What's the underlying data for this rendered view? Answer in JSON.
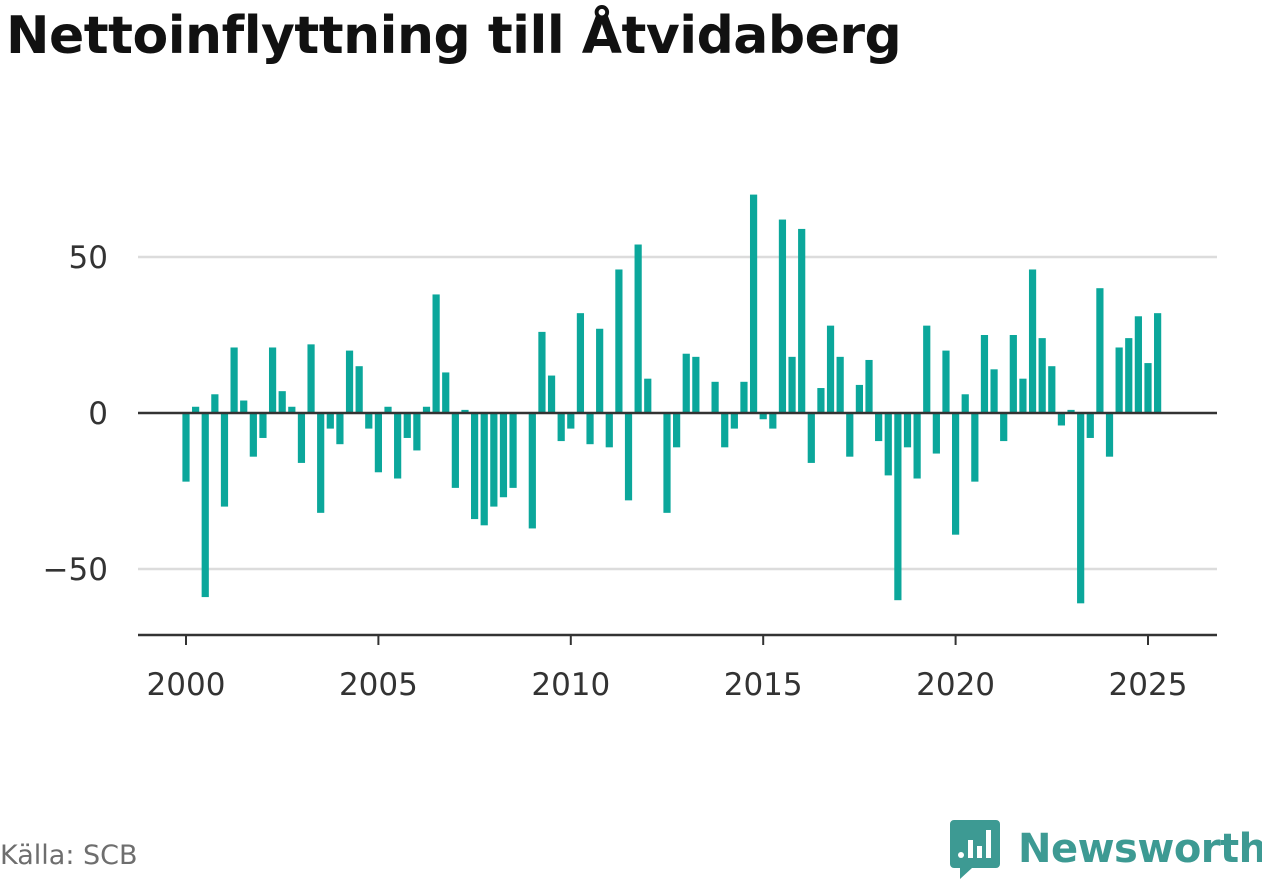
{
  "title": "Nettoinflyttning till Åtvidaberg",
  "source": "Källa: SCB",
  "brand": {
    "name": "Newsworthy",
    "logo_icon": "newsworthy-logo-icon"
  },
  "colors": {
    "bar": "#0ba79b",
    "grid": "#dcdcdc",
    "zero": "#333333",
    "axis": "#333333",
    "brand": "#3d9a93"
  },
  "chart_data": {
    "type": "bar",
    "title": "Nettoinflyttning till Åtvidaberg",
    "xlabel": "",
    "ylabel": "",
    "grid": true,
    "xlim": [
      1999.25,
      2026.5
    ],
    "ylim": [
      -70,
      80
    ],
    "yticks": [
      50,
      0,
      -50
    ],
    "ytick_labels": [
      "50",
      "0",
      "−50"
    ],
    "xticks": [
      2000,
      2005,
      2010,
      2015,
      2020,
      2025
    ],
    "xtick_labels": [
      "2000",
      "2005",
      "2010",
      "2015",
      "2020",
      "2025"
    ],
    "categories": [
      "2000 Q1",
      "2000 Q2",
      "2000 Q3",
      "2000 Q4",
      "2001 Q1",
      "2001 Q2",
      "2001 Q3",
      "2001 Q4",
      "2002 Q1",
      "2002 Q2",
      "2002 Q3",
      "2002 Q4",
      "2003 Q1",
      "2003 Q2",
      "2003 Q3",
      "2003 Q4",
      "2004 Q1",
      "2004 Q2",
      "2004 Q3",
      "2004 Q4",
      "2005 Q1",
      "2005 Q2",
      "2005 Q3",
      "2005 Q4",
      "2006 Q1",
      "2006 Q2",
      "2006 Q3",
      "2006 Q4",
      "2007 Q1",
      "2007 Q2",
      "2007 Q3",
      "2007 Q4",
      "2008 Q1",
      "2008 Q2",
      "2008 Q3",
      "2008 Q4",
      "2009 Q1",
      "2009 Q2",
      "2009 Q3",
      "2009 Q4",
      "2010 Q1",
      "2010 Q2",
      "2010 Q3",
      "2010 Q4",
      "2011 Q1",
      "2011 Q2",
      "2011 Q3",
      "2011 Q4",
      "2012 Q1",
      "2012 Q2",
      "2012 Q3",
      "2012 Q4",
      "2013 Q1",
      "2013 Q2",
      "2013 Q3",
      "2013 Q4",
      "2014 Q1",
      "2014 Q2",
      "2014 Q3",
      "2014 Q4",
      "2015 Q1",
      "2015 Q2",
      "2015 Q3",
      "2015 Q4",
      "2016 Q1",
      "2016 Q2",
      "2016 Q3",
      "2016 Q4",
      "2017 Q1",
      "2017 Q2",
      "2017 Q3",
      "2017 Q4",
      "2018 Q1",
      "2018 Q2",
      "2018 Q3",
      "2018 Q4",
      "2019 Q1",
      "2019 Q2",
      "2019 Q3",
      "2019 Q4",
      "2020 Q1",
      "2020 Q2",
      "2020 Q3",
      "2020 Q4",
      "2021 Q1",
      "2021 Q2",
      "2021 Q3",
      "2021 Q4",
      "2022 Q1",
      "2022 Q2",
      "2022 Q3",
      "2022 Q4",
      "2023 Q1",
      "2023 Q2",
      "2023 Q3",
      "2023 Q4",
      "2024 Q1",
      "2024 Q2",
      "2024 Q3",
      "2024 Q4",
      "2025 Q1",
      "2025 Q2"
    ],
    "x": [
      2000.0,
      2000.25,
      2000.5,
      2000.75,
      2001.0,
      2001.25,
      2001.5,
      2001.75,
      2002.0,
      2002.25,
      2002.5,
      2002.75,
      2003.0,
      2003.25,
      2003.5,
      2003.75,
      2004.0,
      2004.25,
      2004.5,
      2004.75,
      2005.0,
      2005.25,
      2005.5,
      2005.75,
      2006.0,
      2006.25,
      2006.5,
      2006.75,
      2007.0,
      2007.25,
      2007.5,
      2007.75,
      2008.0,
      2008.25,
      2008.5,
      2008.75,
      2009.0,
      2009.25,
      2009.5,
      2009.75,
      2010.0,
      2010.25,
      2010.5,
      2010.75,
      2011.0,
      2011.25,
      2011.5,
      2011.75,
      2012.0,
      2012.25,
      2012.5,
      2012.75,
      2013.0,
      2013.25,
      2013.5,
      2013.75,
      2014.0,
      2014.25,
      2014.5,
      2014.75,
      2015.0,
      2015.25,
      2015.5,
      2015.75,
      2016.0,
      2016.25,
      2016.5,
      2016.75,
      2017.0,
      2017.25,
      2017.5,
      2017.75,
      2018.0,
      2018.25,
      2018.5,
      2018.75,
      2019.0,
      2019.25,
      2019.5,
      2019.75,
      2020.0,
      2020.25,
      2020.5,
      2020.75,
      2021.0,
      2021.25,
      2021.5,
      2021.75,
      2022.0,
      2022.25,
      2022.5,
      2022.75,
      2023.0,
      2023.25,
      2023.5,
      2023.75,
      2024.0,
      2024.25,
      2024.5,
      2024.75,
      2025.0,
      2025.25
    ],
    "series": [
      {
        "values": [
          -22,
          2,
          -59,
          6,
          -30,
          21,
          4,
          -14,
          -8,
          21,
          7,
          2,
          -16,
          22,
          -32,
          -5,
          -10,
          20,
          15,
          -5,
          -19,
          2,
          -21,
          -8,
          -12,
          2,
          38,
          13,
          -24,
          1,
          -34,
          -36,
          -30,
          -27,
          -24,
          0,
          -37,
          26,
          12,
          -9,
          -5,
          32,
          -10,
          27,
          -11,
          46,
          -28,
          54,
          11,
          0,
          -32,
          -11,
          19,
          18,
          0,
          10,
          -11,
          -5,
          10,
          70,
          -2,
          -5,
          62,
          18,
          59,
          -16,
          8,
          28,
          18,
          -14,
          9,
          17,
          -9,
          -20,
          -60,
          -11,
          -21,
          28,
          -13,
          20,
          -39,
          6,
          -22,
          25,
          14,
          -9,
          25,
          11,
          46,
          24,
          15,
          -4,
          1,
          -61,
          -8,
          40,
          -14,
          21,
          24,
          31,
          16,
          32
        ]
      }
    ]
  }
}
